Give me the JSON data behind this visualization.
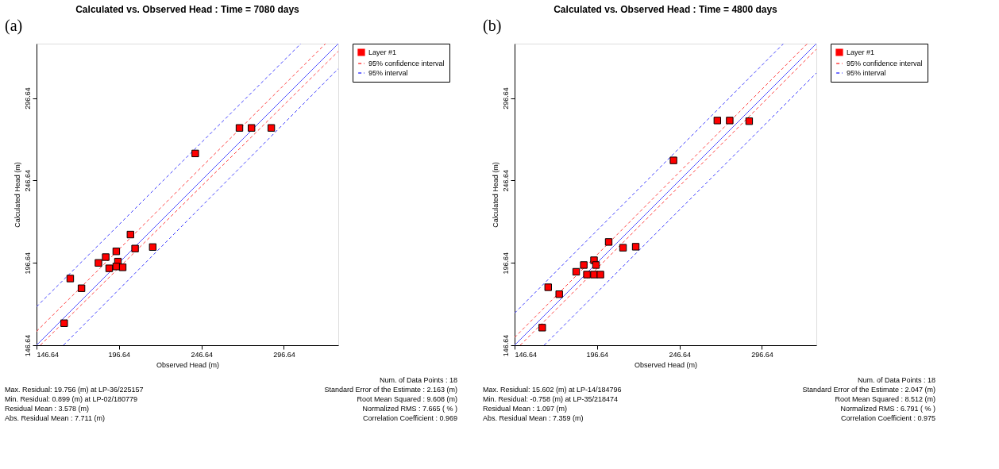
{
  "chart_data": [
    {
      "type": "scatter",
      "title": "Calculated vs. Observed Head : Time = 7080 days",
      "xlabel": "Observed Head (m)",
      "ylabel": "Calculated Head (m)",
      "xlim": [
        146.64,
        329.64
      ],
      "ylim": [
        146.64,
        329.64
      ],
      "xticks": [
        146.64,
        196.64,
        246.64,
        296.64
      ],
      "yticks": [
        146.64,
        196.64,
        246.64,
        296.64
      ],
      "grid": false,
      "legend": "top right",
      "annotations": [
        "(a)",
        "Max. Residual: 19.756 (m) at LP-36/225157",
        "Min. Residual: 0.899 (m) at LP-02/180779",
        "Residual Mean : 3.578 (m)",
        "Abs. Residual Mean : 7.711 (m)",
        "Num. of Data Points : 18",
        "Standard Error of the Estimate : 2.163 (m)",
        "Root Mean Squared : 9.608 (m)",
        "Normalized RMS : 7.665 ( % )",
        "Correlation Coefficient : 0.969"
      ],
      "series": [
        {
          "type": "line",
          "color": "#5050ff",
          "line_style": "solid",
          "x": [
            146.64,
            329.64
          ],
          "values": [
            146.64,
            329.64
          ]
        },
        {
          "type": "line",
          "name": "95% confidence interval",
          "color": "#ff4040",
          "line_style": "dashed",
          "x": [
            146.64,
            321.9
          ],
          "values": [
            155.0,
            329.64
          ]
        },
        {
          "type": "line",
          "color": "#ff4040",
          "line_style": "dashed",
          "x": [
            149.0,
            329.64
          ],
          "values": [
            146.64,
            325.0
          ]
        },
        {
          "type": "line",
          "name": "95% interval",
          "color": "#4040ff",
          "line_style": "dashed",
          "x": [
            146.64,
            306.9
          ],
          "values": [
            170.0,
            329.64
          ]
        },
        {
          "type": "line",
          "color": "#4040ff",
          "line_style": "dashed",
          "x": [
            163.0,
            329.64
          ],
          "values": [
            146.64,
            314.4
          ]
        },
        {
          "name": "Layer #1",
          "color": "#ff0000",
          "marker": "square",
          "x": [
            163.4,
            167.1,
            173.9,
            184.2,
            188.6,
            190.7,
            195.0,
            196.0,
            195.0,
            198.9,
            203.6,
            206.4,
            217.1,
            242.9,
            269.7,
            277.0,
            289.0
          ],
          "values": [
            160.0,
            187.1,
            181.2,
            196.6,
            200.1,
            193.3,
            203.6,
            197.4,
            194.4,
            193.9,
            213.8,
            205.3,
            206.2,
            263.0,
            278.5,
            278.5,
            278.5
          ]
        }
      ]
    },
    {
      "type": "scatter",
      "title": "Calculated vs. Observed Head : Time = 4800 days",
      "xlabel": "Observed Head (m)",
      "ylabel": "Calculated Head (m)",
      "xlim": [
        146.64,
        329.64
      ],
      "ylim": [
        146.64,
        329.64
      ],
      "xticks": [
        146.64,
        196.64,
        246.64,
        296.64
      ],
      "yticks": [
        146.64,
        196.64,
        246.64,
        296.64
      ],
      "grid": false,
      "legend": "top right",
      "annotations": [
        "(b)",
        "Max. Residual: 15.602 (m) at LP-14/184796",
        "Min. Residual: -0.758 (m) at LP-35/218474",
        "Residual Mean : 1.097 (m)",
        "Abs. Residual Mean : 7.359 (m)",
        "Num. of Data Points : 18",
        "Standard Error of the Estimate : 2.047 (m)",
        "Root Mean Squared : 8.512 (m)",
        "Normalized RMS : 6.791 ( % )",
        "Correlation Coefficient : 0.975"
      ],
      "series": [
        {
          "type": "line",
          "color": "#5050ff",
          "line_style": "solid",
          "x": [
            146.64,
            329.64
          ],
          "values": [
            146.64,
            329.64
          ]
        },
        {
          "type": "line",
          "name": "95% confidence interval",
          "color": "#ff4040",
          "line_style": "dashed",
          "x": [
            146.64,
            324.2
          ],
          "values": [
            151.3,
            329.64
          ]
        },
        {
          "type": "line",
          "color": "#ff4040",
          "line_style": "dashed",
          "x": [
            150.1,
            329.64
          ],
          "values": [
            146.64,
            326.2
          ]
        },
        {
          "type": "line",
          "name": "95% interval",
          "color": "#4040ff",
          "line_style": "dashed",
          "x": [
            146.64,
            309.7
          ],
          "values": [
            166.1,
            329.64
          ]
        },
        {
          "type": "line",
          "color": "#4040ff",
          "line_style": "dashed",
          "x": [
            164.6,
            329.64
          ],
          "values": [
            146.64,
            311.8
          ]
        },
        {
          "name": "Layer #1",
          "color": "#ff0000",
          "marker": "square",
          "x": [
            163.4,
            167.0,
            173.7,
            184.0,
            188.6,
            190.5,
            194.8,
            196.0,
            194.8,
            198.7,
            203.7,
            212.4,
            220.1,
            243.0,
            269.6,
            277.1,
            288.9
          ],
          "values": [
            157.3,
            181.8,
            177.6,
            191.2,
            195.3,
            189.5,
            198.2,
            195.3,
            189.5,
            189.5,
            209.3,
            205.8,
            206.4,
            258.8,
            283.0,
            283.0,
            282.6
          ]
        }
      ]
    }
  ]
}
